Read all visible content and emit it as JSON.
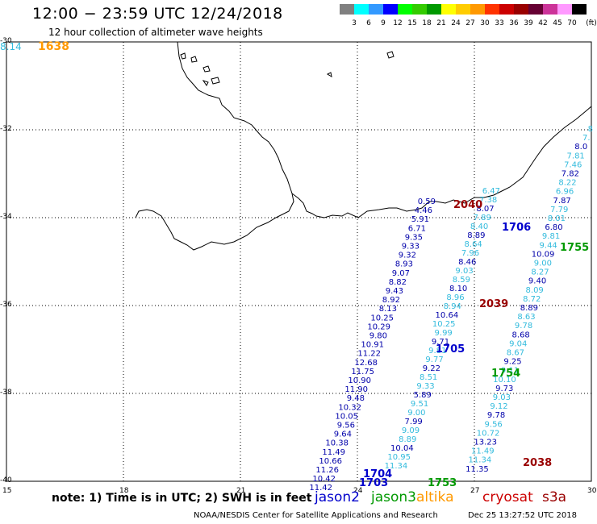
{
  "header": {
    "title": "12:00 − 23:59 UTC 12/24/2018",
    "subtitle": "12 hour collection of altimeter wave heights"
  },
  "scale": {
    "unit": "(ft)",
    "colors": [
      "#808080",
      "#00ffff",
      "#3399ff",
      "#0000ff",
      "#00ff00",
      "#33cc00",
      "#009900",
      "#ffff00",
      "#ffcc00",
      "#ff9900",
      "#ff3300",
      "#cc0000",
      "#990000",
      "#660033",
      "#cc3399",
      "#ff99ff",
      "#000000"
    ],
    "labels": [
      "3",
      "6",
      "9",
      "12",
      "15",
      "18",
      "21",
      "24",
      "27",
      "30",
      "33",
      "36",
      "39",
      "42",
      "45",
      "70"
    ]
  },
  "axes": {
    "lat_ticks": [
      "-30",
      "-32",
      "-34",
      "-36",
      "-38",
      "-40"
    ],
    "lon_ticks": [
      "15",
      "18",
      "21",
      "24",
      "27",
      "30"
    ]
  },
  "corner": {
    "value": "8.14",
    "pass": "1638"
  },
  "passes": [
    {
      "label": "2040",
      "color": "#990000"
    },
    {
      "label": "1706",
      "color": "#0000cc"
    },
    {
      "label": "1755",
      "color": "#009900"
    },
    {
      "label": "2039",
      "color": "#990000"
    },
    {
      "label": "1705",
      "color": "#0000cc"
    },
    {
      "label": "1754",
      "color": "#009900"
    },
    {
      "label": "2038",
      "color": "#990000"
    },
    {
      "label": "1704",
      "color": "#0000cc"
    },
    {
      "label": "1703",
      "color": "#0000cc"
    },
    {
      "label": "1753",
      "color": "#009900"
    }
  ],
  "tracks": {
    "t1": {
      "color": "#33bbdd",
      "values": [
        "8",
        "7.",
        "8.0",
        "7.81",
        "7.46",
        "7.82",
        "8.22",
        "6.96",
        "7.87",
        "7.79",
        "8.01",
        "6.80",
        "9.81",
        "9.44",
        "10.09",
        "9.00",
        "8.27",
        "9.40",
        "8.09",
        "8.72",
        "8.89",
        "8.63",
        "9.78",
        "8.68",
        "9.04",
        "8.67",
        "9.25",
        "9.11",
        "10.10",
        "9.73",
        "9.03",
        "9.12",
        "9.78",
        "9.56",
        "10.72",
        "13.23",
        "11.49",
        "11.34",
        "11.35"
      ]
    },
    "t2": {
      "color": "#33bbdd",
      "values": [
        "6.47",
        "7.38",
        "8.07",
        "7.89",
        "8.40",
        "8.89",
        "8.64",
        "7.96",
        "8.46",
        "9.03",
        "8.59",
        "8.10",
        "8.96",
        "8.94",
        "10.64",
        "10.25",
        "9.99",
        "9.71",
        "9.81",
        "9.77",
        "9.22",
        "8.51",
        "9.33",
        "5.89",
        "9.51",
        "9.00",
        "7.99",
        "9.09",
        "8.89",
        "10.04",
        "10.95",
        "11.34"
      ]
    },
    "t3": {
      "color": "#0000aa",
      "values": [
        "0.59",
        "4.46",
        "5.91",
        "6.71",
        "9.35",
        "9.33",
        "9.32",
        "8.93",
        "9.07",
        "8.82",
        "9.43",
        "8.92",
        "8.13",
        "10.25",
        "10.29",
        "9.80",
        "10.91",
        "11.22",
        "12.68",
        "11.75",
        "10.90",
        "11.90",
        "9.48",
        "10.32",
        "10.05",
        "9.56",
        "9.64",
        "10.38",
        "11.49",
        "10.66",
        "11.26",
        "10.42",
        "11.42"
      ]
    }
  },
  "legend": {
    "note": "note: 1) Time is in UTC; 2) SWH is in feet",
    "items": [
      {
        "label": "jason2",
        "color": "#0000cc"
      },
      {
        "label": "jason3",
        "color": "#009900"
      },
      {
        "label": "altika",
        "color": "#ff9900"
      },
      {
        "label": "cryosat",
        "color": "#cc0000"
      },
      {
        "label": "s3a",
        "color": "#990000"
      }
    ]
  },
  "footer": {
    "left": "NOAA/NESDIS Center for Satellite Applications and Research",
    "right": "Dec 25 13:27:52 UTC 2018"
  }
}
